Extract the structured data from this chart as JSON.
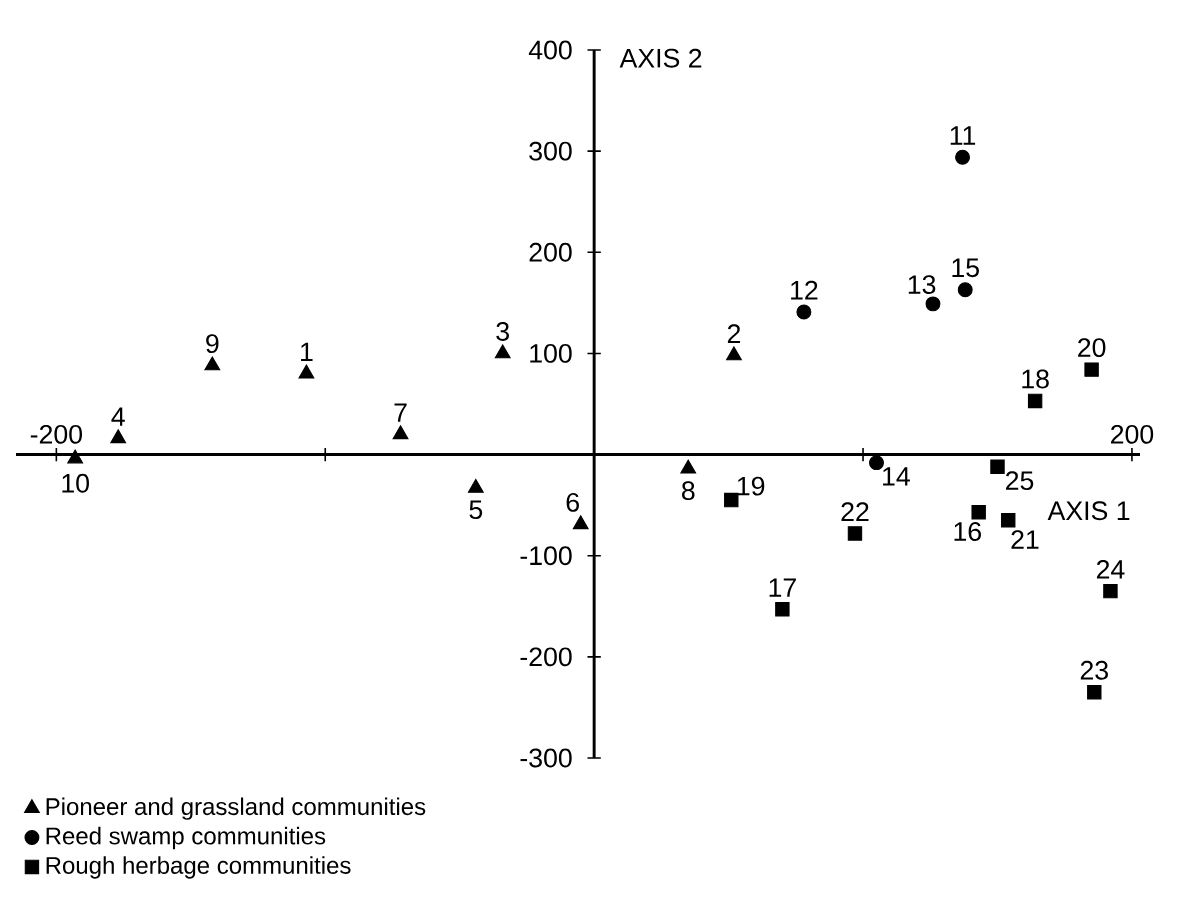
{
  "chart_data": {
    "type": "scatter",
    "xlabel": "AXIS 1",
    "ylabel": "AXIS 2",
    "xlim": [
      -215,
      203
    ],
    "ylim": [
      -300,
      400
    ],
    "xticks": [
      -200,
      {
        "value": -100,
        "label": null
      },
      {
        "value": 100,
        "label": null
      },
      200
    ],
    "yticks": [
      -300,
      -200,
      -100,
      100,
      200,
      300,
      400
    ],
    "legend": "bottom left",
    "grid": false,
    "series": [
      {
        "name": "Pioneer and grassland communities",
        "color": "#000000",
        "marker": "triangle",
        "x": [
          -107,
          52,
          -34,
          -177,
          -44,
          -5,
          -72,
          35,
          -142,
          -193
        ],
        "values": [
          80,
          98,
          100,
          16,
          -33,
          -69,
          20,
          -14,
          88,
          -4
        ]
      },
      {
        "name": "Reed swamp communities",
        "color": "#000000",
        "marker": "circle",
        "x": [
          137,
          78,
          126,
          105,
          138
        ],
        "values": [
          294,
          141,
          149,
          -8,
          163
        ]
      },
      {
        "name": "Rough herbage communities",
        "color": "#000000",
        "marker": "square",
        "x": [
          143,
          70,
          164,
          51,
          185,
          154,
          97,
          186,
          192,
          150
        ],
        "values": [
          -57,
          -153,
          53,
          -45,
          84,
          -65,
          -78,
          -235,
          -135,
          -12
        ]
      }
    ],
    "annotations": [
      {
        "text": "1",
        "x": -107,
        "y": 80
      },
      {
        "text": "2",
        "x": 52,
        "y": 98
      },
      {
        "text": "3",
        "x": -34,
        "y": 100
      },
      {
        "text": "4",
        "x": -177,
        "y": 16
      },
      {
        "text": "5",
        "x": -44,
        "y": -33
      },
      {
        "text": "6",
        "x": -5,
        "y": -69
      },
      {
        "text": "7",
        "x": -72,
        "y": 20
      },
      {
        "text": "8",
        "x": 35,
        "y": -14
      },
      {
        "text": "9",
        "x": -142,
        "y": 88
      },
      {
        "text": "10",
        "x": -193,
        "y": -4
      },
      {
        "text": "11",
        "x": 137,
        "y": 294
      },
      {
        "text": "12",
        "x": 78,
        "y": 141
      },
      {
        "text": "13",
        "x": 126,
        "y": 149
      },
      {
        "text": "14",
        "x": 105,
        "y": -8
      },
      {
        "text": "15",
        "x": 138,
        "y": 163
      },
      {
        "text": "16",
        "x": 143,
        "y": -57
      },
      {
        "text": "17",
        "x": 70,
        "y": -153
      },
      {
        "text": "18",
        "x": 164,
        "y": 53
      },
      {
        "text": "19",
        "x": 51,
        "y": -45
      },
      {
        "text": "20",
        "x": 185,
        "y": 84
      },
      {
        "text": "21",
        "x": 154,
        "y": -65
      },
      {
        "text": "22",
        "x": 97,
        "y": -78
      },
      {
        "text": "23",
        "x": 186,
        "y": -235
      },
      {
        "text": "24",
        "x": 192,
        "y": -135
      },
      {
        "text": "25",
        "x": 150,
        "y": -12
      }
    ]
  }
}
